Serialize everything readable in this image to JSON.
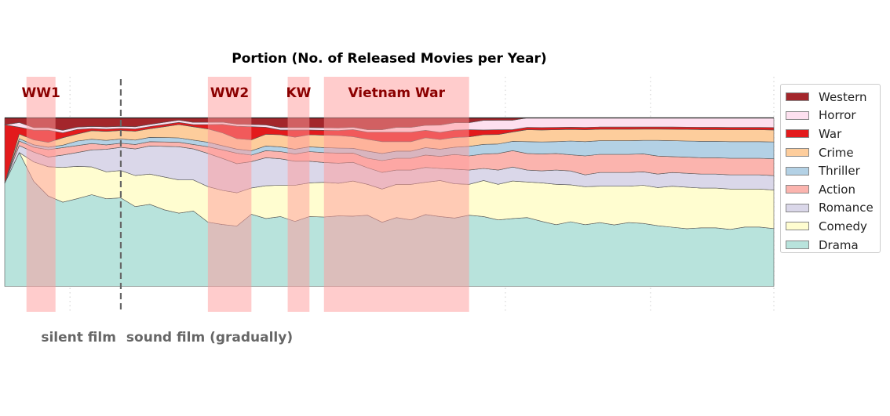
{
  "chart_data": {
    "type": "area",
    "title": "Portion (No. of Released Movies per Year)",
    "xlim": [
      1910,
      2016
    ],
    "ylim": [
      0,
      1
    ],
    "x": [
      1910,
      1912,
      1914,
      1916,
      1918,
      1920,
      1922,
      1924,
      1926,
      1928,
      1930,
      1932,
      1934,
      1936,
      1938,
      1940,
      1942,
      1944,
      1946,
      1948,
      1950,
      1952,
      1954,
      1956,
      1958,
      1960,
      1962,
      1964,
      1966,
      1968,
      1970,
      1972,
      1974,
      1976,
      1978,
      1980,
      1982,
      1984,
      1986,
      1988,
      1990,
      1992,
      1994,
      1996,
      1998,
      2000,
      2002,
      2004,
      2006,
      2008,
      2010,
      2012,
      2014,
      2016
    ],
    "series": [
      {
        "name": "Drama",
        "color": "#b8e3dc",
        "values": [
          0.3,
          0.58,
          0.43,
          0.37,
          0.34,
          0.38,
          0.43,
          0.39,
          0.42,
          0.36,
          0.38,
          0.35,
          0.33,
          0.34,
          0.29,
          0.29,
          0.29,
          0.33,
          0.29,
          0.29,
          0.27,
          0.29,
          0.28,
          0.28,
          0.3,
          0.3,
          0.27,
          0.29,
          0.28,
          0.29,
          0.29,
          0.28,
          0.3,
          0.29,
          0.28,
          0.29,
          0.29,
          0.27,
          0.26,
          0.28,
          0.26,
          0.28,
          0.27,
          0.28,
          0.28,
          0.27,
          0.26,
          0.25,
          0.25,
          0.25,
          0.24,
          0.25,
          0.25,
          0.24
        ]
      },
      {
        "name": "Comedy",
        "color": "#fffdd0",
        "values": [
          0.0,
          0.0,
          0.08,
          0.12,
          0.14,
          0.14,
          0.13,
          0.12,
          0.13,
          0.14,
          0.14,
          0.15,
          0.15,
          0.14,
          0.16,
          0.16,
          0.16,
          0.12,
          0.14,
          0.13,
          0.15,
          0.14,
          0.14,
          0.13,
          0.15,
          0.13,
          0.14,
          0.14,
          0.15,
          0.13,
          0.15,
          0.14,
          0.13,
          0.15,
          0.15,
          0.16,
          0.15,
          0.16,
          0.17,
          0.16,
          0.16,
          0.16,
          0.17,
          0.16,
          0.17,
          0.17,
          0.18,
          0.18,
          0.17,
          0.17,
          0.17,
          0.16,
          0.16,
          0.16
        ]
      },
      {
        "name": "Romance",
        "color": "#dad7e9",
        "values": [
          0.0,
          0.03,
          0.04,
          0.04,
          0.05,
          0.06,
          0.08,
          0.1,
          0.11,
          0.12,
          0.13,
          0.14,
          0.15,
          0.14,
          0.15,
          0.15,
          0.14,
          0.12,
          0.12,
          0.11,
          0.1,
          0.09,
          0.08,
          0.08,
          0.08,
          0.07,
          0.07,
          0.06,
          0.06,
          0.06,
          0.05,
          0.06,
          0.06,
          0.05,
          0.06,
          0.06,
          0.05,
          0.05,
          0.06,
          0.06,
          0.05,
          0.06,
          0.06,
          0.06,
          0.06,
          0.06,
          0.06,
          0.06,
          0.06,
          0.06,
          0.06,
          0.06,
          0.06,
          0.06
        ]
      },
      {
        "name": "Action",
        "color": "#fbb4ae",
        "values": [
          0.0,
          0.02,
          0.02,
          0.03,
          0.03,
          0.03,
          0.03,
          0.02,
          0.02,
          0.02,
          0.02,
          0.02,
          0.02,
          0.02,
          0.03,
          0.04,
          0.05,
          0.03,
          0.03,
          0.03,
          0.03,
          0.04,
          0.04,
          0.04,
          0.04,
          0.04,
          0.05,
          0.05,
          0.05,
          0.05,
          0.05,
          0.06,
          0.06,
          0.06,
          0.07,
          0.07,
          0.07,
          0.07,
          0.07,
          0.07,
          0.08,
          0.08,
          0.08,
          0.08,
          0.08,
          0.08,
          0.07,
          0.07,
          0.07,
          0.07,
          0.07,
          0.07,
          0.07,
          0.07
        ]
      },
      {
        "name": "Thriller",
        "color": "#b3d1e5",
        "values": [
          0.0,
          0.01,
          0.01,
          0.01,
          0.01,
          0.02,
          0.02,
          0.02,
          0.02,
          0.02,
          0.02,
          0.02,
          0.02,
          0.02,
          0.02,
          0.02,
          0.02,
          0.02,
          0.02,
          0.02,
          0.02,
          0.02,
          0.02,
          0.02,
          0.02,
          0.03,
          0.03,
          0.03,
          0.03,
          0.03,
          0.03,
          0.03,
          0.04,
          0.04,
          0.04,
          0.04,
          0.05,
          0.05,
          0.05,
          0.06,
          0.06,
          0.06,
          0.06,
          0.06,
          0.06,
          0.07,
          0.07,
          0.07,
          0.07,
          0.07,
          0.07,
          0.07,
          0.07,
          0.07
        ]
      },
      {
        "name": "Crime",
        "color": "#fdcd9c",
        "values": [
          0.0,
          0.02,
          0.02,
          0.02,
          0.03,
          0.03,
          0.04,
          0.04,
          0.04,
          0.04,
          0.04,
          0.05,
          0.06,
          0.06,
          0.06,
          0.06,
          0.05,
          0.05,
          0.05,
          0.05,
          0.05,
          0.05,
          0.05,
          0.05,
          0.05,
          0.05,
          0.05,
          0.04,
          0.04,
          0.04,
          0.04,
          0.04,
          0.04,
          0.04,
          0.04,
          0.04,
          0.05,
          0.05,
          0.05,
          0.05,
          0.05,
          0.05,
          0.05,
          0.05,
          0.05,
          0.05,
          0.05,
          0.05,
          0.05,
          0.05,
          0.05,
          0.05,
          0.05,
          0.05
        ]
      },
      {
        "name": "War",
        "color": "#e31a1c",
        "values": [
          0.17,
          0.03,
          0.04,
          0.05,
          0.02,
          0.02,
          0.01,
          0.01,
          0.01,
          0.01,
          0.01,
          0.01,
          0.01,
          0.01,
          0.02,
          0.04,
          0.06,
          0.06,
          0.03,
          0.02,
          0.03,
          0.02,
          0.02,
          0.02,
          0.03,
          0.03,
          0.04,
          0.04,
          0.04,
          0.03,
          0.03,
          0.03,
          0.03,
          0.02,
          0.02,
          0.01,
          0.01,
          0.01,
          0.01,
          0.01,
          0.01,
          0.01,
          0.01,
          0.01,
          0.01,
          0.01,
          0.01,
          0.01,
          0.01,
          0.01,
          0.01,
          0.01,
          0.01,
          0.01
        ]
      },
      {
        "name": "Horror",
        "color": "#fde0ef",
        "values": [
          0.0,
          0.02,
          0.01,
          0.01,
          0.01,
          0.01,
          0.01,
          0.01,
          0.01,
          0.01,
          0.01,
          0.01,
          0.01,
          0.01,
          0.01,
          0.01,
          0.01,
          0.01,
          0.01,
          0.01,
          0.01,
          0.01,
          0.01,
          0.01,
          0.01,
          0.01,
          0.01,
          0.02,
          0.02,
          0.02,
          0.03,
          0.03,
          0.03,
          0.04,
          0.04,
          0.04,
          0.04,
          0.04,
          0.04,
          0.04,
          0.04,
          0.04,
          0.04,
          0.04,
          0.04,
          0.04,
          0.04,
          0.04,
          0.04,
          0.04,
          0.04,
          0.04,
          0.04,
          0.04
        ]
      },
      {
        "name": "Western",
        "color": "#a3262b",
        "values": [
          0.02,
          0.02,
          0.04,
          0.04,
          0.05,
          0.04,
          0.04,
          0.04,
          0.04,
          0.04,
          0.03,
          0.02,
          0.01,
          0.02,
          0.02,
          0.02,
          0.03,
          0.03,
          0.03,
          0.04,
          0.04,
          0.04,
          0.04,
          0.04,
          0.04,
          0.05,
          0.05,
          0.04,
          0.04,
          0.03,
          0.03,
          0.02,
          0.02,
          0.01,
          0.01,
          0.01,
          0.0,
          0.0,
          0.0,
          0.0,
          0.0,
          0.0,
          0.0,
          0.0,
          0.0,
          0.0,
          0.0,
          0.0,
          0.0,
          0.0,
          0.0,
          0.0,
          0.0,
          0.0
        ]
      }
    ],
    "legend_order": [
      "Western",
      "Horror",
      "War",
      "Crime",
      "Thriller",
      "Action",
      "Romance",
      "Comedy",
      "Drama"
    ],
    "legend_placement": "right",
    "grid": false,
    "shaded_periods": [
      {
        "label": "WW1",
        "start": 1913,
        "end": 1917
      },
      {
        "label": "WW2",
        "start": 1938,
        "end": 1944
      },
      {
        "label": "KW",
        "start": 1949,
        "end": 1952
      },
      {
        "label": "Vietnam War",
        "start": 1954,
        "end": 1974
      }
    ],
    "period_label_color": "#8b0000",
    "shade_color": "#ff9999",
    "divider": {
      "x": 1926,
      "left_label": "silent film",
      "right_label": "sound film (gradually)"
    },
    "dotted_lines": [
      1919,
      1979,
      1999,
      2016
    ]
  }
}
